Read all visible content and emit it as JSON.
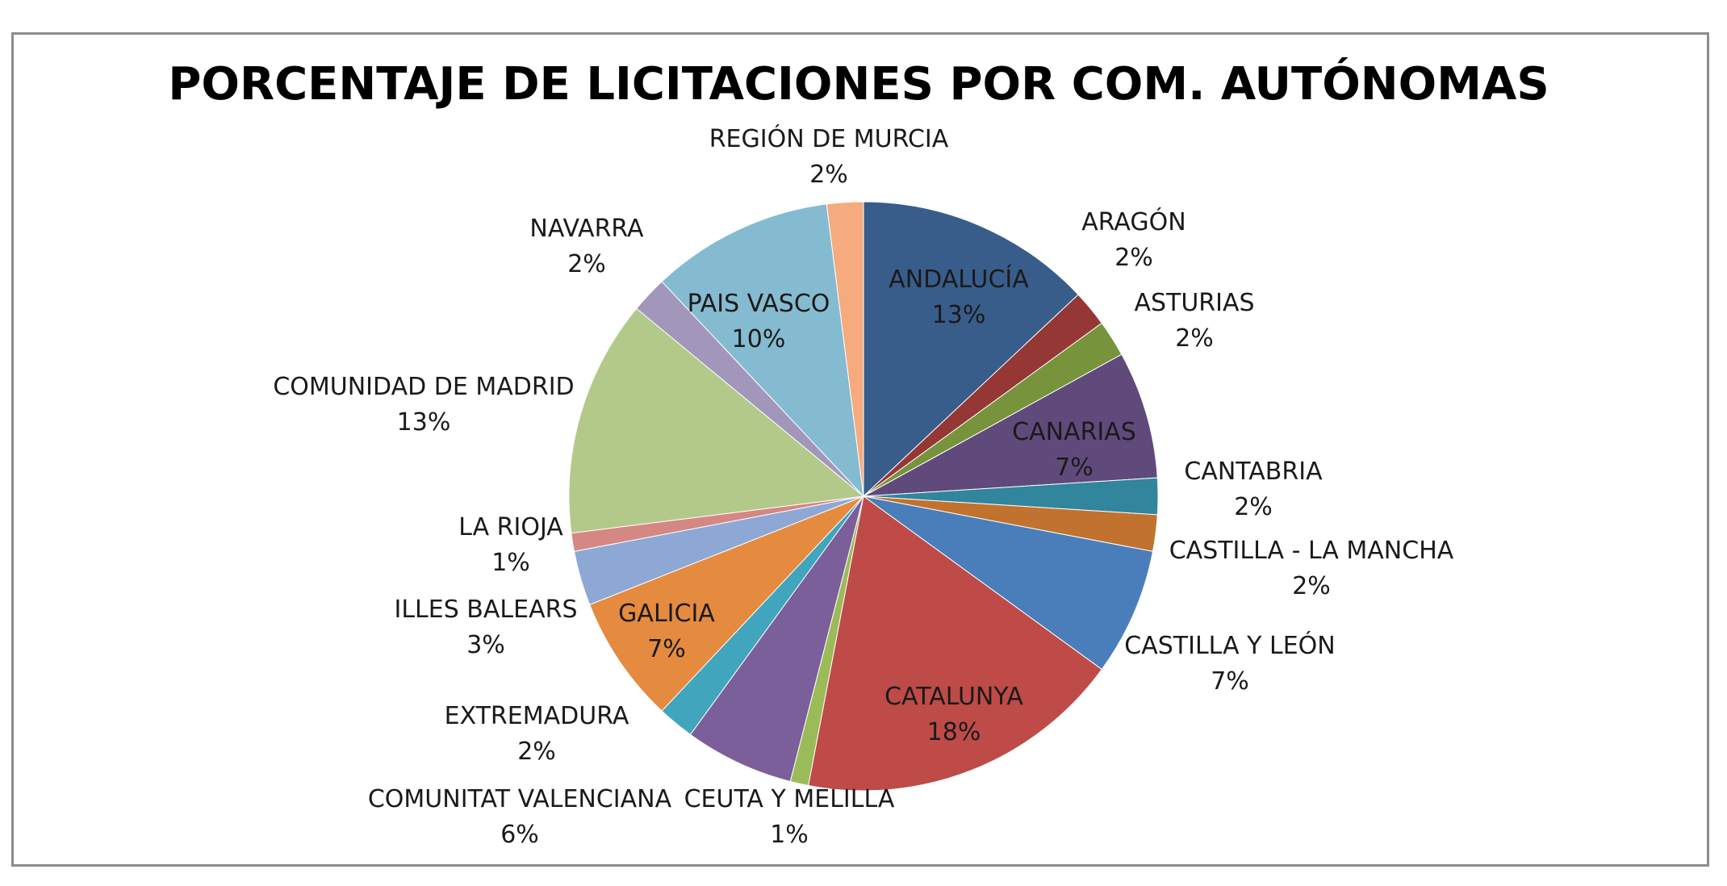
{
  "chart_data": {
    "type": "pie",
    "title": "PORCENTAJE DE LICITACIONES POR COM. AUTÓNOMAS",
    "slices": [
      {
        "name": "ANDALUCÍA",
        "value": 13,
        "label": "13%",
        "color": "#385d8a"
      },
      {
        "name": "ARAGÓN",
        "value": 2,
        "label": "2%",
        "color": "#953735"
      },
      {
        "name": "ASTURIAS",
        "value": 2,
        "label": "2%",
        "color": "#77933c"
      },
      {
        "name": "CANARIAS",
        "value": 7,
        "label": "7%",
        "color": "#604a7b"
      },
      {
        "name": "CANTABRIA",
        "value": 2,
        "label": "2%",
        "color": "#31859c"
      },
      {
        "name": "CASTILLA - LA MANCHA",
        "value": 2,
        "label": "2%",
        "color": "#c0722e"
      },
      {
        "name": "CASTILLA Y LEÓN",
        "value": 7,
        "label": "7%",
        "color": "#4a7ebb"
      },
      {
        "name": "CATALUNYA",
        "value": 18,
        "label": "18%",
        "color": "#be4b48"
      },
      {
        "name": "CEUTA Y MELILLA",
        "value": 1,
        "label": "1%",
        "color": "#9bbb59"
      },
      {
        "name": "COMUNITAT VALENCIANA",
        "value": 6,
        "label": "6%",
        "color": "#7b5f9a"
      },
      {
        "name": "EXTREMADURA",
        "value": 2,
        "label": "2%",
        "color": "#40a5bd"
      },
      {
        "name": "GALICIA",
        "value": 7,
        "label": "7%",
        "color": "#e58b3f"
      },
      {
        "name": "ILLES BALEARS",
        "value": 3,
        "label": "3%",
        "color": "#8ea8d6"
      },
      {
        "name": "LA RIOJA",
        "value": 1,
        "label": "1%",
        "color": "#d58784"
      },
      {
        "name": "COMUNIDAD DE MADRID",
        "value": 13,
        "label": "13%",
        "color": "#b3c98a"
      },
      {
        "name": "NAVARRA",
        "value": 2,
        "label": "2%",
        "color": "#a396bb"
      },
      {
        "name": "PAIS VASCO",
        "value": 10,
        "label": "10%",
        "color": "#85bbd0"
      },
      {
        "name": "REGIÓN DE MURCIA",
        "value": 2,
        "label": "2%",
        "color": "#f5ab7e"
      }
    ],
    "legend": "none",
    "start_angle": "12 o'clock, clockwise"
  }
}
